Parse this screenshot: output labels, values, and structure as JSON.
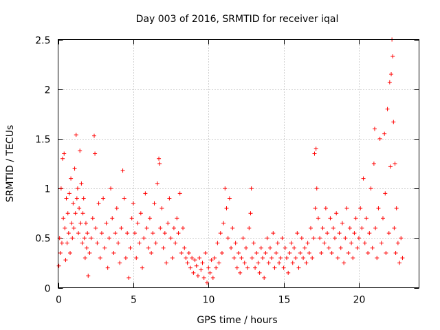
{
  "chart_data": {
    "type": "scatter",
    "title": "Day 003 of 2016, SRMTID for receiver iqal",
    "xlabel": "GPS time / hours",
    "ylabel": "SRMTID / TECUs",
    "xlim": [
      0,
      24
    ],
    "ylim": [
      0,
      2.5
    ],
    "xticks": [
      0,
      5,
      10,
      15,
      20
    ],
    "xtick_labels": [
      "0",
      "5",
      "10",
      "15",
      "20"
    ],
    "yticks": [
      0,
      0.5,
      1,
      1.5,
      2,
      2.5
    ],
    "ytick_labels": [
      "0",
      "0.5",
      "1",
      "1.5",
      "2",
      "2.5"
    ],
    "grid": true,
    "marker": "+",
    "color": "#ff0000",
    "series": [
      {
        "name": "SRMTID",
        "points": [
          [
            0.05,
            0.22
          ],
          [
            0.1,
            0.5
          ],
          [
            0.15,
            0.35
          ],
          [
            0.2,
            1.0
          ],
          [
            0.25,
            0.45
          ],
          [
            0.3,
            1.3
          ],
          [
            0.35,
            0.7
          ],
          [
            0.4,
            1.35
          ],
          [
            0.45,
            0.6
          ],
          [
            0.5,
            0.28
          ],
          [
            0.55,
            0.9
          ],
          [
            0.6,
            0.45
          ],
          [
            0.65,
            0.75
          ],
          [
            0.7,
            0.55
          ],
          [
            0.75,
            0.95
          ],
          [
            0.8,
            0.35
          ],
          [
            0.85,
            1.1
          ],
          [
            0.9,
            0.65
          ],
          [
            0.95,
            0.5
          ],
          [
            1.0,
            0.85
          ],
          [
            1.05,
            0.6
          ],
          [
            1.1,
            1.2
          ],
          [
            1.15,
            0.75
          ],
          [
            1.2,
            1.54
          ],
          [
            1.25,
            0.9
          ],
          [
            1.3,
            1.0
          ],
          [
            1.35,
            0.55
          ],
          [
            1.4,
            0.8
          ],
          [
            1.45,
            1.38
          ],
          [
            1.5,
            0.65
          ],
          [
            1.55,
            1.05
          ],
          [
            1.6,
            0.45
          ],
          [
            1.65,
            0.75
          ],
          [
            1.7,
            0.9
          ],
          [
            1.75,
            0.5
          ],
          [
            1.8,
            0.3
          ],
          [
            1.85,
            0.65
          ],
          [
            1.9,
            0.4
          ],
          [
            1.95,
            0.55
          ],
          [
            2.0,
            0.12
          ],
          [
            2.1,
            0.35
          ],
          [
            2.2,
            0.5
          ],
          [
            2.3,
            0.7
          ],
          [
            2.4,
            1.53
          ],
          [
            2.45,
            1.35
          ],
          [
            2.5,
            0.6
          ],
          [
            2.6,
            0.45
          ],
          [
            2.7,
            0.85
          ],
          [
            2.8,
            0.3
          ],
          [
            2.9,
            0.55
          ],
          [
            3.0,
            0.9
          ],
          [
            3.1,
            0.4
          ],
          [
            3.2,
            0.65
          ],
          [
            3.3,
            0.2
          ],
          [
            3.4,
            0.5
          ],
          [
            3.5,
            1.0
          ],
          [
            3.6,
            0.7
          ],
          [
            3.7,
            0.35
          ],
          [
            3.8,
            0.55
          ],
          [
            3.9,
            0.8
          ],
          [
            4.0,
            0.45
          ],
          [
            4.1,
            0.25
          ],
          [
            4.2,
            0.6
          ],
          [
            4.3,
            1.18
          ],
          [
            4.4,
            0.9
          ],
          [
            4.5,
            0.3
          ],
          [
            4.6,
            0.55
          ],
          [
            4.7,
            0.1
          ],
          [
            4.8,
            0.4
          ],
          [
            4.9,
            0.7
          ],
          [
            5.0,
            0.85
          ],
          [
            5.1,
            0.55
          ],
          [
            5.2,
            0.3
          ],
          [
            5.3,
            0.65
          ],
          [
            5.4,
            0.45
          ],
          [
            5.5,
            0.75
          ],
          [
            5.6,
            0.2
          ],
          [
            5.7,
            0.5
          ],
          [
            5.8,
            0.95
          ],
          [
            5.9,
            0.6
          ],
          [
            6.0,
            0.4
          ],
          [
            6.1,
            0.7
          ],
          [
            6.2,
            0.35
          ],
          [
            6.3,
            0.55
          ],
          [
            6.4,
            0.85
          ],
          [
            6.5,
            0.45
          ],
          [
            6.6,
            1.05
          ],
          [
            6.7,
            1.3
          ],
          [
            6.75,
            1.25
          ],
          [
            6.8,
            0.6
          ],
          [
            6.9,
            0.8
          ],
          [
            7.0,
            0.4
          ],
          [
            7.1,
            0.55
          ],
          [
            7.2,
            0.25
          ],
          [
            7.3,
            0.65
          ],
          [
            7.4,
            0.9
          ],
          [
            7.5,
            0.5
          ],
          [
            7.6,
            0.3
          ],
          [
            7.7,
            0.6
          ],
          [
            7.8,
            0.45
          ],
          [
            7.9,
            0.7
          ],
          [
            8.0,
            0.55
          ],
          [
            8.1,
            0.95
          ],
          [
            8.2,
            0.35
          ],
          [
            8.3,
            0.6
          ],
          [
            8.4,
            0.4
          ],
          [
            8.5,
            0.3
          ],
          [
            8.6,
            0.25
          ],
          [
            8.7,
            0.35
          ],
          [
            8.8,
            0.2
          ],
          [
            8.9,
            0.3
          ],
          [
            9.0,
            0.15
          ],
          [
            9.1,
            0.28
          ],
          [
            9.2,
            0.22
          ],
          [
            9.3,
            0.12
          ],
          [
            9.4,
            0.3
          ],
          [
            9.5,
            0.18
          ],
          [
            9.6,
            0.25
          ],
          [
            9.7,
            0.1
          ],
          [
            9.8,
            0.35
          ],
          [
            9.9,
            0.05
          ],
          [
            10.0,
            0.2
          ],
          [
            10.1,
            0.15
          ],
          [
            10.2,
            0.28
          ],
          [
            10.3,
            0.1
          ],
          [
            10.4,
            0.3
          ],
          [
            10.5,
            0.2
          ],
          [
            10.6,
            0.45
          ],
          [
            10.7,
            0.25
          ],
          [
            10.8,
            0.55
          ],
          [
            10.9,
            0.35
          ],
          [
            11.0,
            0.65
          ],
          [
            11.1,
            1.0
          ],
          [
            11.2,
            0.8
          ],
          [
            11.3,
            0.5
          ],
          [
            11.4,
            0.9
          ],
          [
            11.5,
            0.4
          ],
          [
            11.6,
            0.6
          ],
          [
            11.7,
            0.3
          ],
          [
            11.8,
            0.45
          ],
          [
            11.9,
            0.2
          ],
          [
            12.0,
            0.35
          ],
          [
            12.1,
            0.15
          ],
          [
            12.2,
            0.3
          ],
          [
            12.3,
            0.5
          ],
          [
            12.4,
            0.25
          ],
          [
            12.5,
            0.4
          ],
          [
            12.6,
            0.2
          ],
          [
            12.7,
            0.6
          ],
          [
            12.8,
            0.75
          ],
          [
            12.85,
            1.0
          ],
          [
            12.9,
            0.3
          ],
          [
            13.0,
            0.45
          ],
          [
            13.1,
            0.2
          ],
          [
            13.2,
            0.35
          ],
          [
            13.3,
            0.25
          ],
          [
            13.4,
            0.15
          ],
          [
            13.5,
            0.4
          ],
          [
            13.6,
            0.3
          ],
          [
            13.7,
            0.1
          ],
          [
            13.8,
            0.35
          ],
          [
            13.9,
            0.5
          ],
          [
            14.0,
            0.25
          ],
          [
            14.1,
            0.4
          ],
          [
            14.2,
            0.3
          ],
          [
            14.3,
            0.55
          ],
          [
            14.4,
            0.2
          ],
          [
            14.5,
            0.35
          ],
          [
            14.6,
            0.45
          ],
          [
            14.7,
            0.25
          ],
          [
            14.8,
            0.3
          ],
          [
            14.9,
            0.5
          ],
          [
            15.0,
            0.2
          ],
          [
            15.1,
            0.4
          ],
          [
            15.2,
            0.3
          ],
          [
            15.3,
            0.15
          ],
          [
            15.4,
            0.35
          ],
          [
            15.5,
            0.45
          ],
          [
            15.6,
            0.25
          ],
          [
            15.7,
            0.4
          ],
          [
            15.8,
            0.3
          ],
          [
            15.9,
            0.55
          ],
          [
            16.0,
            0.2
          ],
          [
            16.1,
            0.35
          ],
          [
            16.2,
            0.5
          ],
          [
            16.3,
            0.3
          ],
          [
            16.4,
            0.4
          ],
          [
            16.5,
            0.25
          ],
          [
            16.6,
            0.45
          ],
          [
            16.7,
            0.35
          ],
          [
            16.8,
            0.6
          ],
          [
            16.9,
            0.3
          ],
          [
            17.0,
            0.5
          ],
          [
            17.05,
            1.35
          ],
          [
            17.1,
            0.8
          ],
          [
            17.15,
            1.4
          ],
          [
            17.2,
            1.0
          ],
          [
            17.3,
            0.7
          ],
          [
            17.4,
            0.5
          ],
          [
            17.5,
            0.35
          ],
          [
            17.6,
            0.6
          ],
          [
            17.7,
            0.45
          ],
          [
            17.8,
            0.8
          ],
          [
            17.9,
            0.55
          ],
          [
            18.0,
            0.4
          ],
          [
            18.1,
            0.7
          ],
          [
            18.2,
            0.35
          ],
          [
            18.3,
            0.6
          ],
          [
            18.4,
            0.5
          ],
          [
            18.5,
            0.75
          ],
          [
            18.6,
            0.3
          ],
          [
            18.7,
            0.55
          ],
          [
            18.8,
            0.4
          ],
          [
            18.9,
            0.65
          ],
          [
            19.0,
            0.25
          ],
          [
            19.1,
            0.5
          ],
          [
            19.2,
            0.8
          ],
          [
            19.3,
            0.35
          ],
          [
            19.4,
            0.6
          ],
          [
            19.5,
            0.45
          ],
          [
            19.6,
            0.3
          ],
          [
            19.7,
            0.55
          ],
          [
            19.8,
            0.7
          ],
          [
            19.9,
            0.4
          ],
          [
            20.0,
            0.5
          ],
          [
            20.1,
            0.8
          ],
          [
            20.2,
            0.6
          ],
          [
            20.3,
            1.1
          ],
          [
            20.4,
            0.45
          ],
          [
            20.5,
            0.7
          ],
          [
            20.6,
            0.35
          ],
          [
            20.7,
            0.55
          ],
          [
            20.8,
            1.0
          ],
          [
            20.9,
            0.4
          ],
          [
            21.0,
            1.25
          ],
          [
            21.05,
            1.6
          ],
          [
            21.1,
            0.6
          ],
          [
            21.2,
            0.3
          ],
          [
            21.3,
            0.8
          ],
          [
            21.4,
            1.5
          ],
          [
            21.5,
            0.45
          ],
          [
            21.6,
            0.7
          ],
          [
            21.7,
            1.55
          ],
          [
            21.75,
            0.95
          ],
          [
            21.8,
            0.35
          ],
          [
            21.9,
            1.8
          ],
          [
            22.0,
            0.55
          ],
          [
            22.05,
            2.07
          ],
          [
            22.1,
            1.22
          ],
          [
            22.15,
            2.15
          ],
          [
            22.2,
            2.5
          ],
          [
            22.25,
            2.33
          ],
          [
            22.3,
            1.67
          ],
          [
            22.35,
            0.6
          ],
          [
            22.4,
            1.25
          ],
          [
            22.45,
            0.35
          ],
          [
            22.5,
            0.8
          ],
          [
            22.6,
            0.45
          ],
          [
            22.7,
            0.25
          ],
          [
            22.8,
            0.5
          ],
          [
            22.9,
            0.3
          ]
        ]
      }
    ]
  }
}
